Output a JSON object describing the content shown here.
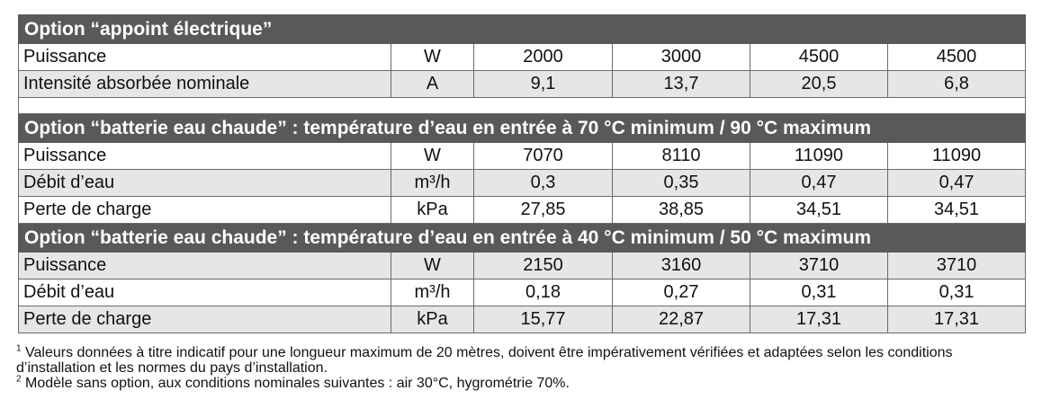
{
  "section1": {
    "title": "Option “appoint électrique”",
    "rows": [
      {
        "label": "Puissance",
        "unit": "W",
        "values": [
          "2000",
          "3000",
          "4500",
          "4500"
        ]
      },
      {
        "label": "Intensité absorbée nominale",
        "unit": "A",
        "values": [
          "9,1",
          "13,7",
          "20,5",
          "6,8"
        ]
      }
    ]
  },
  "section2": {
    "title": "Option “batterie eau chaude” : température d’eau en entrée à 70 °C minimum / 90 °C maximum",
    "rows": [
      {
        "label": "Puissance",
        "unit": "W",
        "values": [
          "7070",
          "8110",
          "11090",
          "11090"
        ]
      },
      {
        "label": "Débit d’eau",
        "unit": "m³/h",
        "values": [
          "0,3",
          "0,35",
          "0,47",
          "0,47"
        ]
      },
      {
        "label": "Perte de charge",
        "unit": "kPa",
        "values": [
          "27,85",
          "38,85",
          "34,51",
          "34,51"
        ]
      }
    ]
  },
  "section3": {
    "title": "Option “batterie eau chaude” : température d’eau en entrée à 40 °C minimum / 50 °C maximum",
    "rows": [
      {
        "label": "Puissance",
        "unit": "W",
        "values": [
          "2150",
          "3160",
          "3710",
          "3710"
        ]
      },
      {
        "label": "Débit d’eau",
        "unit": "m³/h",
        "values": [
          "0,18",
          "0,27",
          "0,31",
          "0,31"
        ]
      },
      {
        "label": "Perte de charge",
        "unit": "kPa",
        "values": [
          "15,77",
          "22,87",
          "17,31",
          "17,31"
        ]
      }
    ]
  },
  "notes": {
    "note1_marker": "1",
    "note1_text": " Valeurs données à titre indicatif pour une longueur maximum de 20 mètres, doivent être impérativement vérifiées et adaptées selon les conditions d’installation et les normes du pays d’installation.",
    "note2_marker": "2",
    "note2_text": " Modèle sans option, aux conditions nominales suivantes : air 30°C, hygrométrie 70%."
  }
}
